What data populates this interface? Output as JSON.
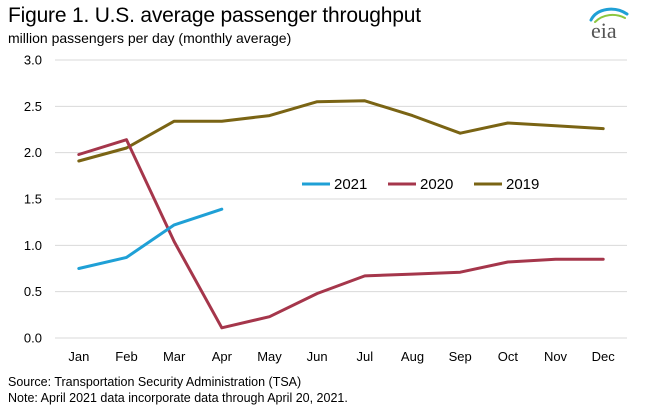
{
  "figure": {
    "title": "Figure 1. U.S. average passenger throughput",
    "subtitle": "million passengers per day (monthly average)",
    "logo_text": "eia",
    "source": "Source: Transportation  Security Administration (TSA)",
    "note": "Note: April 2021 data incorporate data through April 20, 2021."
  },
  "chart_data": {
    "type": "line",
    "title": "Figure 1. U.S. average passenger throughput",
    "ylabel": "million passengers per day (monthly average)",
    "xlabel": "",
    "categories": [
      "Jan",
      "Feb",
      "Mar",
      "Apr",
      "May",
      "Jun",
      "Jul",
      "Aug",
      "Sep",
      "Oct",
      "Nov",
      "Dec"
    ],
    "ylim": [
      0,
      3.0
    ],
    "yticks": [
      "0.0",
      "0.5",
      "1.0",
      "1.5",
      "2.0",
      "2.5",
      "3.0"
    ],
    "grid": "horizontal",
    "legend_position": "center-right",
    "series": [
      {
        "name": "2021",
        "color": "#1fa0d6",
        "values": [
          0.75,
          0.87,
          1.22,
          1.39,
          null,
          null,
          null,
          null,
          null,
          null,
          null,
          null
        ]
      },
      {
        "name": "2020",
        "color": "#a5364b",
        "values": [
          1.98,
          2.14,
          1.04,
          0.11,
          0.23,
          0.48,
          0.67,
          0.69,
          0.71,
          0.82,
          0.85,
          0.85
        ]
      },
      {
        "name": "2019",
        "color": "#7a6414",
        "values": [
          1.91,
          2.05,
          2.34,
          2.34,
          2.4,
          2.55,
          2.56,
          2.4,
          2.21,
          2.32,
          2.29,
          2.26
        ]
      }
    ]
  }
}
